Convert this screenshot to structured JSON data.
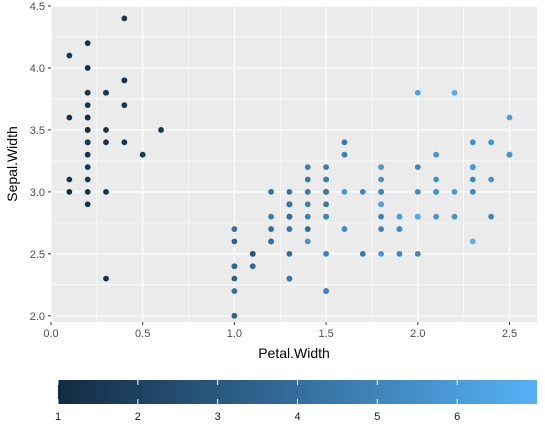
{
  "chart_data": {
    "type": "scatter",
    "xlabel": "Petal.Width",
    "ylabel": "Sepal.Width",
    "xlim": [
      0.0,
      2.65
    ],
    "ylim": [
      1.95,
      4.5
    ],
    "x_ticks": [
      "0.0",
      "0.5",
      "1.0",
      "1.5",
      "2.0",
      "2.5"
    ],
    "y_ticks": [
      "2.0",
      "2.5",
      "3.0",
      "3.5",
      "4.0",
      "4.5"
    ],
    "grid": true,
    "background": "#ebebeb",
    "gridline_color": "#ffffff",
    "legend": {
      "placement": "bottom",
      "type": "colorbar",
      "range": [
        1,
        7
      ],
      "ticks": [
        "1",
        "2",
        "3",
        "4",
        "5",
        "6"
      ],
      "low_color": "#132b43",
      "high_color": "#56b1f7"
    },
    "points": [
      [
        0.4,
        4.4,
        1.5
      ],
      [
        0.2,
        4.2,
        1.4
      ],
      [
        0.1,
        4.1,
        1.5
      ],
      [
        0.2,
        4.0,
        1.2
      ],
      [
        0.4,
        3.9,
        1.7
      ],
      [
        0.4,
        3.9,
        1.3
      ],
      [
        0.3,
        3.8,
        1.7
      ],
      [
        0.2,
        3.8,
        1.9
      ],
      [
        0.3,
        3.8,
        1.5
      ],
      [
        0.2,
        3.8,
        1.6
      ],
      [
        0.2,
        3.7,
        1.5
      ],
      [
        0.4,
        3.7,
        1.5
      ],
      [
        0.2,
        3.6,
        1.4
      ],
      [
        0.1,
        3.6,
        1.4
      ],
      [
        0.2,
        3.6,
        1.0
      ],
      [
        0.6,
        3.5,
        1.6
      ],
      [
        0.2,
        3.5,
        1.4
      ],
      [
        0.3,
        3.5,
        1.4
      ],
      [
        0.2,
        3.5,
        1.3
      ],
      [
        0.2,
        3.4,
        1.5
      ],
      [
        0.4,
        3.4,
        1.5
      ],
      [
        0.2,
        3.4,
        1.6
      ],
      [
        0.3,
        3.4,
        1.4
      ],
      [
        0.2,
        3.3,
        1.4
      ],
      [
        0.5,
        3.3,
        1.7
      ],
      [
        0.2,
        3.2,
        1.6
      ],
      [
        0.2,
        3.1,
        1.5
      ],
      [
        0.1,
        3.1,
        1.5
      ],
      [
        0.2,
        3.0,
        1.4
      ],
      [
        0.1,
        3.0,
        1.1
      ],
      [
        0.3,
        3.0,
        1.4
      ],
      [
        0.2,
        2.9,
        1.4
      ],
      [
        0.3,
        2.3,
        1.3
      ],
      [
        1.4,
        3.2,
        4.7
      ],
      [
        1.5,
        3.2,
        4.5
      ],
      [
        1.5,
        3.1,
        4.9
      ],
      [
        1.3,
        2.3,
        4.0
      ],
      [
        1.5,
        2.8,
        4.6
      ],
      [
        1.3,
        2.8,
        4.5
      ],
      [
        1.6,
        3.3,
        4.7
      ],
      [
        1.0,
        2.4,
        3.3
      ],
      [
        1.3,
        2.9,
        4.6
      ],
      [
        1.4,
        2.7,
        3.9
      ],
      [
        1.0,
        2.0,
        3.5
      ],
      [
        1.5,
        3.0,
        4.2
      ],
      [
        1.0,
        2.2,
        4.0
      ],
      [
        1.4,
        2.9,
        4.7
      ],
      [
        1.3,
        2.9,
        3.6
      ],
      [
        1.4,
        3.1,
        4.4
      ],
      [
        1.5,
        3.0,
        4.5
      ],
      [
        1.0,
        2.7,
        4.1
      ],
      [
        1.5,
        2.2,
        4.5
      ],
      [
        1.1,
        2.5,
        3.9
      ],
      [
        1.8,
        3.2,
        4.8
      ],
      [
        1.3,
        2.8,
        4.0
      ],
      [
        1.5,
        2.5,
        4.9
      ],
      [
        1.2,
        2.8,
        4.7
      ],
      [
        1.3,
        2.9,
        4.3
      ],
      [
        1.4,
        3.0,
        4.4
      ],
      [
        1.4,
        2.8,
        4.8
      ],
      [
        1.7,
        3.0,
        5.0
      ],
      [
        1.5,
        2.9,
        4.5
      ],
      [
        1.0,
        2.6,
        3.5
      ],
      [
        1.1,
        2.4,
        3.8
      ],
      [
        1.0,
        2.4,
        3.7
      ],
      [
        1.2,
        2.7,
        3.9
      ],
      [
        1.6,
        2.7,
        5.1
      ],
      [
        1.5,
        3.0,
        4.5
      ],
      [
        1.6,
        3.4,
        4.5
      ],
      [
        1.5,
        3.1,
        4.7
      ],
      [
        1.3,
        2.3,
        4.4
      ],
      [
        1.3,
        3.0,
        4.1
      ],
      [
        1.3,
        2.5,
        4.0
      ],
      [
        1.2,
        2.6,
        4.4
      ],
      [
        1.4,
        3.0,
        4.6
      ],
      [
        1.2,
        2.6,
        4.0
      ],
      [
        1.0,
        2.3,
        3.3
      ],
      [
        1.3,
        2.7,
        4.2
      ],
      [
        1.2,
        3.0,
        4.2
      ],
      [
        1.3,
        2.9,
        4.2
      ],
      [
        1.3,
        2.9,
        4.3
      ],
      [
        1.1,
        2.5,
        3.0
      ],
      [
        1.3,
        2.8,
        4.1
      ],
      [
        2.5,
        3.3,
        6.0
      ],
      [
        1.9,
        2.7,
        5.1
      ],
      [
        2.1,
        3.0,
        5.9
      ],
      [
        1.8,
        2.9,
        5.6
      ],
      [
        2.2,
        3.0,
        5.8
      ],
      [
        2.1,
        3.0,
        6.6
      ],
      [
        1.7,
        2.5,
        4.5
      ],
      [
        1.8,
        2.9,
        6.3
      ],
      [
        1.8,
        2.5,
        5.8
      ],
      [
        2.5,
        3.6,
        6.1
      ],
      [
        2.0,
        3.2,
        5.1
      ],
      [
        1.9,
        2.7,
        5.3
      ],
      [
        2.1,
        3.0,
        5.5
      ],
      [
        2.0,
        2.5,
        5.0
      ],
      [
        2.4,
        2.8,
        5.1
      ],
      [
        2.3,
        3.2,
        5.3
      ],
      [
        1.8,
        3.0,
        5.5
      ],
      [
        2.2,
        3.8,
        6.7
      ],
      [
        2.3,
        2.6,
        6.9
      ],
      [
        1.5,
        2.2,
        5.0
      ],
      [
        2.3,
        3.2,
        5.7
      ],
      [
        2.0,
        2.8,
        4.9
      ],
      [
        2.0,
        2.8,
        6.7
      ],
      [
        1.8,
        2.7,
        4.9
      ],
      [
        2.1,
        3.3,
        5.7
      ],
      [
        1.8,
        3.2,
        6.0
      ],
      [
        1.8,
        2.8,
        4.8
      ],
      [
        1.8,
        3.0,
        4.9
      ],
      [
        2.1,
        2.8,
        5.6
      ],
      [
        1.6,
        3.0,
        5.8
      ],
      [
        1.9,
        2.8,
        6.1
      ],
      [
        2.0,
        3.8,
        6.4
      ],
      [
        2.2,
        2.8,
        5.6
      ],
      [
        1.5,
        2.8,
        5.1
      ],
      [
        1.4,
        2.6,
        5.6
      ],
      [
        2.3,
        3.0,
        6.1
      ],
      [
        2.4,
        3.4,
        5.6
      ],
      [
        1.8,
        3.1,
        5.5
      ],
      [
        1.8,
        3.0,
        4.8
      ],
      [
        2.1,
        3.1,
        5.4
      ],
      [
        2.4,
        3.1,
        5.6
      ],
      [
        2.3,
        3.1,
        5.1
      ],
      [
        2.3,
        3.2,
        5.9
      ],
      [
        2.5,
        3.3,
        5.7
      ],
      [
        2.3,
        3.0,
        5.2
      ],
      [
        1.9,
        2.5,
        5.0
      ],
      [
        2.0,
        3.0,
        5.2
      ],
      [
        2.3,
        3.4,
        5.4
      ],
      [
        1.8,
        3.0,
        5.1
      ]
    ]
  }
}
